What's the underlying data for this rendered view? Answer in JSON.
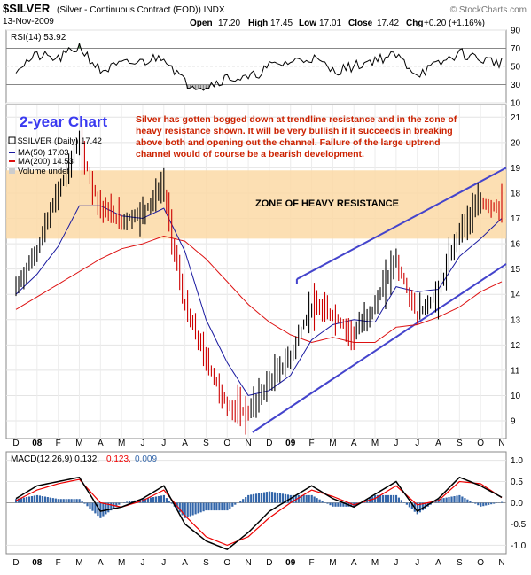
{
  "header": {
    "symbol": "$SILVER",
    "description": "(Silver - Continuous Contract (EOD)) INDX",
    "date": "13-Nov-2009",
    "brand": "© StockCharts.com",
    "open_label": "Open",
    "open": "17.20",
    "high_label": "High",
    "high": "17.45",
    "low_label": "Low",
    "low": "17.01",
    "close_label": "Close",
    "close": "17.42",
    "chg_label": "Chg",
    "chg": "+0.20 (+1.16%)"
  },
  "rsi": {
    "label": "RSI(14) 53.92",
    "ticks": [
      "90",
      "70",
      "50",
      "30",
      "10"
    ]
  },
  "price": {
    "chart_title": "2-year Chart",
    "legend": [
      "$SILVER (Daily) 17.42",
      "MA(50) 17.03",
      "MA(200) 14.53",
      "Volume undef"
    ],
    "zone_label": "ZONE OF HEAVY RESISTANCE",
    "commentary": [
      "Silver has gotten bogged down at trendline resistance and in the zone of",
      "heavy resistance shown. It will be very bullish if it succeeds in breaking",
      "above both and opening out the channel. Failure of the large uptrend",
      "channel would of course be a bearish development."
    ],
    "ticks": [
      "21",
      "20",
      "19",
      "18",
      "17",
      "16",
      "15",
      "14",
      "13",
      "12",
      "11",
      "10",
      "9"
    ]
  },
  "months": [
    "D",
    "08",
    "F",
    "M",
    "A",
    "M",
    "J",
    "J",
    "A",
    "S",
    "O",
    "N",
    "D",
    "09",
    "F",
    "M",
    "A",
    "M",
    "J",
    "J",
    "A",
    "S",
    "O",
    "N"
  ],
  "macd": {
    "label_main": "MACD(12,26,9) 0.132,",
    "label_signal": "0.123,",
    "label_hist": "0.009",
    "ticks": [
      "1.0",
      "0.5",
      "0.0",
      "-0.5",
      "-1.0"
    ]
  },
  "colors": {
    "price": "#000000",
    "down": "#cc0000",
    "up": "#000000",
    "ma50": "#1a1aa0",
    "ma200": "#dd1111",
    "zone": "#fcd9a6",
    "trend": "#4444cc",
    "annotation": "#cc2200",
    "title": "#3a3af0",
    "hist": "#3366aa",
    "signal": "#ee0000"
  },
  "chart_data": {
    "type": "line",
    "x": [
      "2007-12",
      "2008-01",
      "2008-02",
      "2008-03",
      "2008-04",
      "2008-05",
      "2008-06",
      "2008-07",
      "2008-08",
      "2008-09",
      "2008-10",
      "2008-11",
      "2008-12",
      "2009-01",
      "2009-02",
      "2009-03",
      "2009-04",
      "2009-05",
      "2009-06",
      "2009-07",
      "2009-08",
      "2009-09",
      "2009-10",
      "2009-11"
    ],
    "series": [
      {
        "name": "$SILVER (Daily) 17.42",
        "values": [
          14.2,
          15.7,
          18.0,
          20.0,
          17.5,
          16.9,
          17.2,
          18.3,
          13.6,
          11.5,
          9.6,
          9.3,
          10.5,
          11.5,
          13.5,
          13.2,
          12.4,
          13.5,
          15.4,
          13.2,
          14.0,
          16.5,
          17.6,
          17.4
        ]
      },
      {
        "name": "MA(50) 17.03",
        "values": [
          14.0,
          14.8,
          15.9,
          17.5,
          17.5,
          17.1,
          17.0,
          17.4,
          15.7,
          13.0,
          11.3,
          10.0,
          10.2,
          10.8,
          12.2,
          12.8,
          13.0,
          12.9,
          14.3,
          14.1,
          14.2,
          15.5,
          16.2,
          17.0
        ]
      },
      {
        "name": "MA(200) 14.53",
        "values": [
          13.4,
          13.9,
          14.4,
          14.9,
          15.4,
          15.8,
          16.0,
          16.3,
          16.1,
          15.4,
          14.5,
          13.6,
          12.9,
          12.4,
          12.1,
          12.3,
          12.1,
          12.1,
          12.7,
          12.8,
          13.1,
          13.5,
          14.1,
          14.5
        ]
      }
    ],
    "resistance_zone": [
      16.2,
      18.9
    ],
    "ylim": [
      8.3,
      21.5
    ],
    "rsi": {
      "label": "RSI(14) 53.92",
      "ylim": [
        10,
        90
      ],
      "values": [
        48,
        62,
        58,
        72,
        45,
        52,
        55,
        62,
        32,
        28,
        38,
        36,
        50,
        55,
        60,
        45,
        50,
        58,
        62,
        42,
        52,
        65,
        58,
        54
      ]
    },
    "macd": {
      "label": "MACD(12,26,9) 0.132, 0.123, 0.009",
      "ylim": [
        -1.2,
        1.2
      ],
      "macd": [
        0.1,
        0.4,
        0.5,
        0.6,
        -0.2,
        -0.1,
        0.1,
        0.4,
        -0.5,
        -0.9,
        -1.1,
        -0.7,
        -0.2,
        0.1,
        0.4,
        0.1,
        -0.1,
        0.2,
        0.5,
        -0.2,
        0.1,
        0.6,
        0.4,
        0.13
      ],
      "signal": [
        0.05,
        0.3,
        0.45,
        0.55,
        0.0,
        -0.1,
        0.05,
        0.3,
        -0.3,
        -0.8,
        -1.0,
        -0.8,
        -0.35,
        0.0,
        0.3,
        0.15,
        -0.05,
        0.1,
        0.4,
        -0.05,
        0.05,
        0.5,
        0.45,
        0.12
      ]
    }
  }
}
